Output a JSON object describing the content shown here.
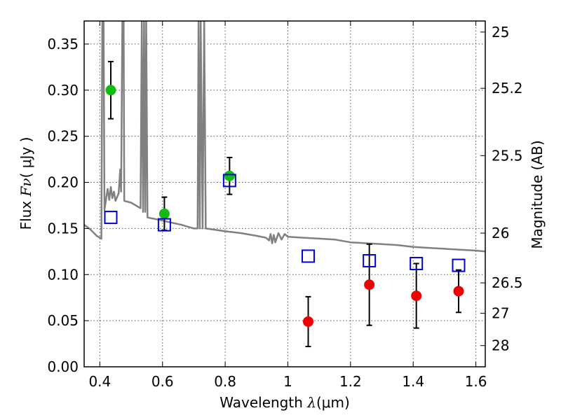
{
  "chart_data": {
    "type": "scatter",
    "xlabel_prefix": "Wavelength  ",
    "xlabel_symbol": "λ",
    "xlabel_units": "(μm)",
    "ylabel_prefix": "Flux  ",
    "ylabel_symbol": "Fν",
    "ylabel_units": "(  μJy )",
    "y2label": "Magnitude (AB)",
    "xlim": [
      0.35,
      1.63
    ],
    "ylim": [
      0.0,
      0.375
    ],
    "grid": true,
    "x_ticks": [
      0.4,
      0.6,
      0.8,
      1.0,
      1.2,
      1.4,
      1.6
    ],
    "x_tick_labels": [
      "0.4",
      "0.6",
      "0.8",
      "1",
      "1.2",
      "1.4",
      "1.6"
    ],
    "y_ticks": [
      0.0,
      0.05,
      0.1,
      0.15,
      0.2,
      0.25,
      0.3,
      0.35
    ],
    "y_tick_labels": [
      "0.00",
      "0.05",
      "0.10",
      "0.15",
      "0.20",
      "0.25",
      "0.30",
      "0.35"
    ],
    "y2_ticks": [
      {
        "label": "25",
        "flux": 0.363
      },
      {
        "label": "25.2",
        "flux": 0.302
      },
      {
        "label": "25.5",
        "flux": 0.229
      },
      {
        "label": "26",
        "flux": 0.145
      },
      {
        "label": "26.5",
        "flux": 0.091
      },
      {
        "label": "27",
        "flux": 0.058
      },
      {
        "label": "28",
        "flux": 0.023
      }
    ],
    "series": [
      {
        "name": "detections (green)",
        "color": "#11bb11",
        "marker": "circle",
        "points": [
          {
            "x": 0.435,
            "y": 0.3,
            "yerr": 0.031
          },
          {
            "x": 0.606,
            "y": 0.166,
            "yerr": 0.018
          },
          {
            "x": 0.814,
            "y": 0.207,
            "yerr": 0.02
          }
        ]
      },
      {
        "name": "measurements (red)",
        "color": "#ee0000",
        "marker": "circle",
        "points": [
          {
            "x": 1.065,
            "y": 0.049,
            "yerr": 0.027
          },
          {
            "x": 1.26,
            "y": 0.089,
            "yerr": 0.044
          },
          {
            "x": 1.41,
            "y": 0.077,
            "yerr": 0.035
          },
          {
            "x": 1.545,
            "y": 0.082,
            "yerr": 0.023
          }
        ]
      },
      {
        "name": "model photometry",
        "color": "#0000dd",
        "marker": "open-square",
        "points": [
          {
            "x": 0.435,
            "y": 0.162
          },
          {
            "x": 0.606,
            "y": 0.154
          },
          {
            "x": 0.814,
            "y": 0.202
          },
          {
            "x": 1.065,
            "y": 0.12
          },
          {
            "x": 1.26,
            "y": 0.115
          },
          {
            "x": 1.41,
            "y": 0.112
          },
          {
            "x": 1.545,
            "y": 0.11
          }
        ]
      }
    ],
    "model_spectrum": {
      "name": "model SED",
      "color": "#808080",
      "points": [
        [
          0.35,
          0.154
        ],
        [
          0.37,
          0.149
        ],
        [
          0.39,
          0.142
        ],
        [
          0.4,
          0.14
        ],
        [
          0.405,
          0.139
        ],
        [
          0.408,
          0.375
        ],
        [
          0.412,
          0.375
        ],
        [
          0.415,
          0.17
        ],
        [
          0.42,
          0.182
        ],
        [
          0.425,
          0.193
        ],
        [
          0.43,
          0.181
        ],
        [
          0.435,
          0.195
        ],
        [
          0.44,
          0.183
        ],
        [
          0.445,
          0.19
        ],
        [
          0.45,
          0.18
        ],
        [
          0.46,
          0.188
        ],
        [
          0.465,
          0.214
        ],
        [
          0.468,
          0.19
        ],
        [
          0.472,
          0.375
        ],
        [
          0.476,
          0.375
        ],
        [
          0.478,
          0.18
        ],
        [
          0.5,
          0.178
        ],
        [
          0.52,
          0.174
        ],
        [
          0.53,
          0.172
        ],
        [
          0.534,
          0.375
        ],
        [
          0.538,
          0.168
        ],
        [
          0.541,
          0.375
        ],
        [
          0.545,
          0.168
        ],
        [
          0.548,
          0.375
        ],
        [
          0.552,
          0.162
        ],
        [
          0.58,
          0.16
        ],
        [
          0.62,
          0.157
        ],
        [
          0.66,
          0.154
        ],
        [
          0.7,
          0.15
        ],
        [
          0.712,
          0.15
        ],
        [
          0.715,
          0.375
        ],
        [
          0.719,
          0.15
        ],
        [
          0.722,
          0.375
        ],
        [
          0.728,
          0.15
        ],
        [
          0.733,
          0.375
        ],
        [
          0.738,
          0.15
        ],
        [
          0.76,
          0.149
        ],
        [
          0.8,
          0.147
        ],
        [
          0.85,
          0.145
        ],
        [
          0.9,
          0.142
        ],
        [
          0.93,
          0.14
        ],
        [
          0.94,
          0.137
        ],
        [
          0.945,
          0.144
        ],
        [
          0.95,
          0.134
        ],
        [
          0.955,
          0.143
        ],
        [
          0.96,
          0.135
        ],
        [
          0.97,
          0.145
        ],
        [
          0.98,
          0.138
        ],
        [
          0.99,
          0.144
        ],
        [
          1.0,
          0.141
        ],
        [
          1.05,
          0.14
        ],
        [
          1.1,
          0.139
        ],
        [
          1.15,
          0.138
        ],
        [
          1.2,
          0.135
        ],
        [
          1.25,
          0.134
        ],
        [
          1.3,
          0.133
        ],
        [
          1.35,
          0.132
        ],
        [
          1.4,
          0.13
        ],
        [
          1.45,
          0.129
        ],
        [
          1.5,
          0.128
        ],
        [
          1.55,
          0.127
        ],
        [
          1.6,
          0.126
        ],
        [
          1.63,
          0.125
        ]
      ]
    }
  }
}
